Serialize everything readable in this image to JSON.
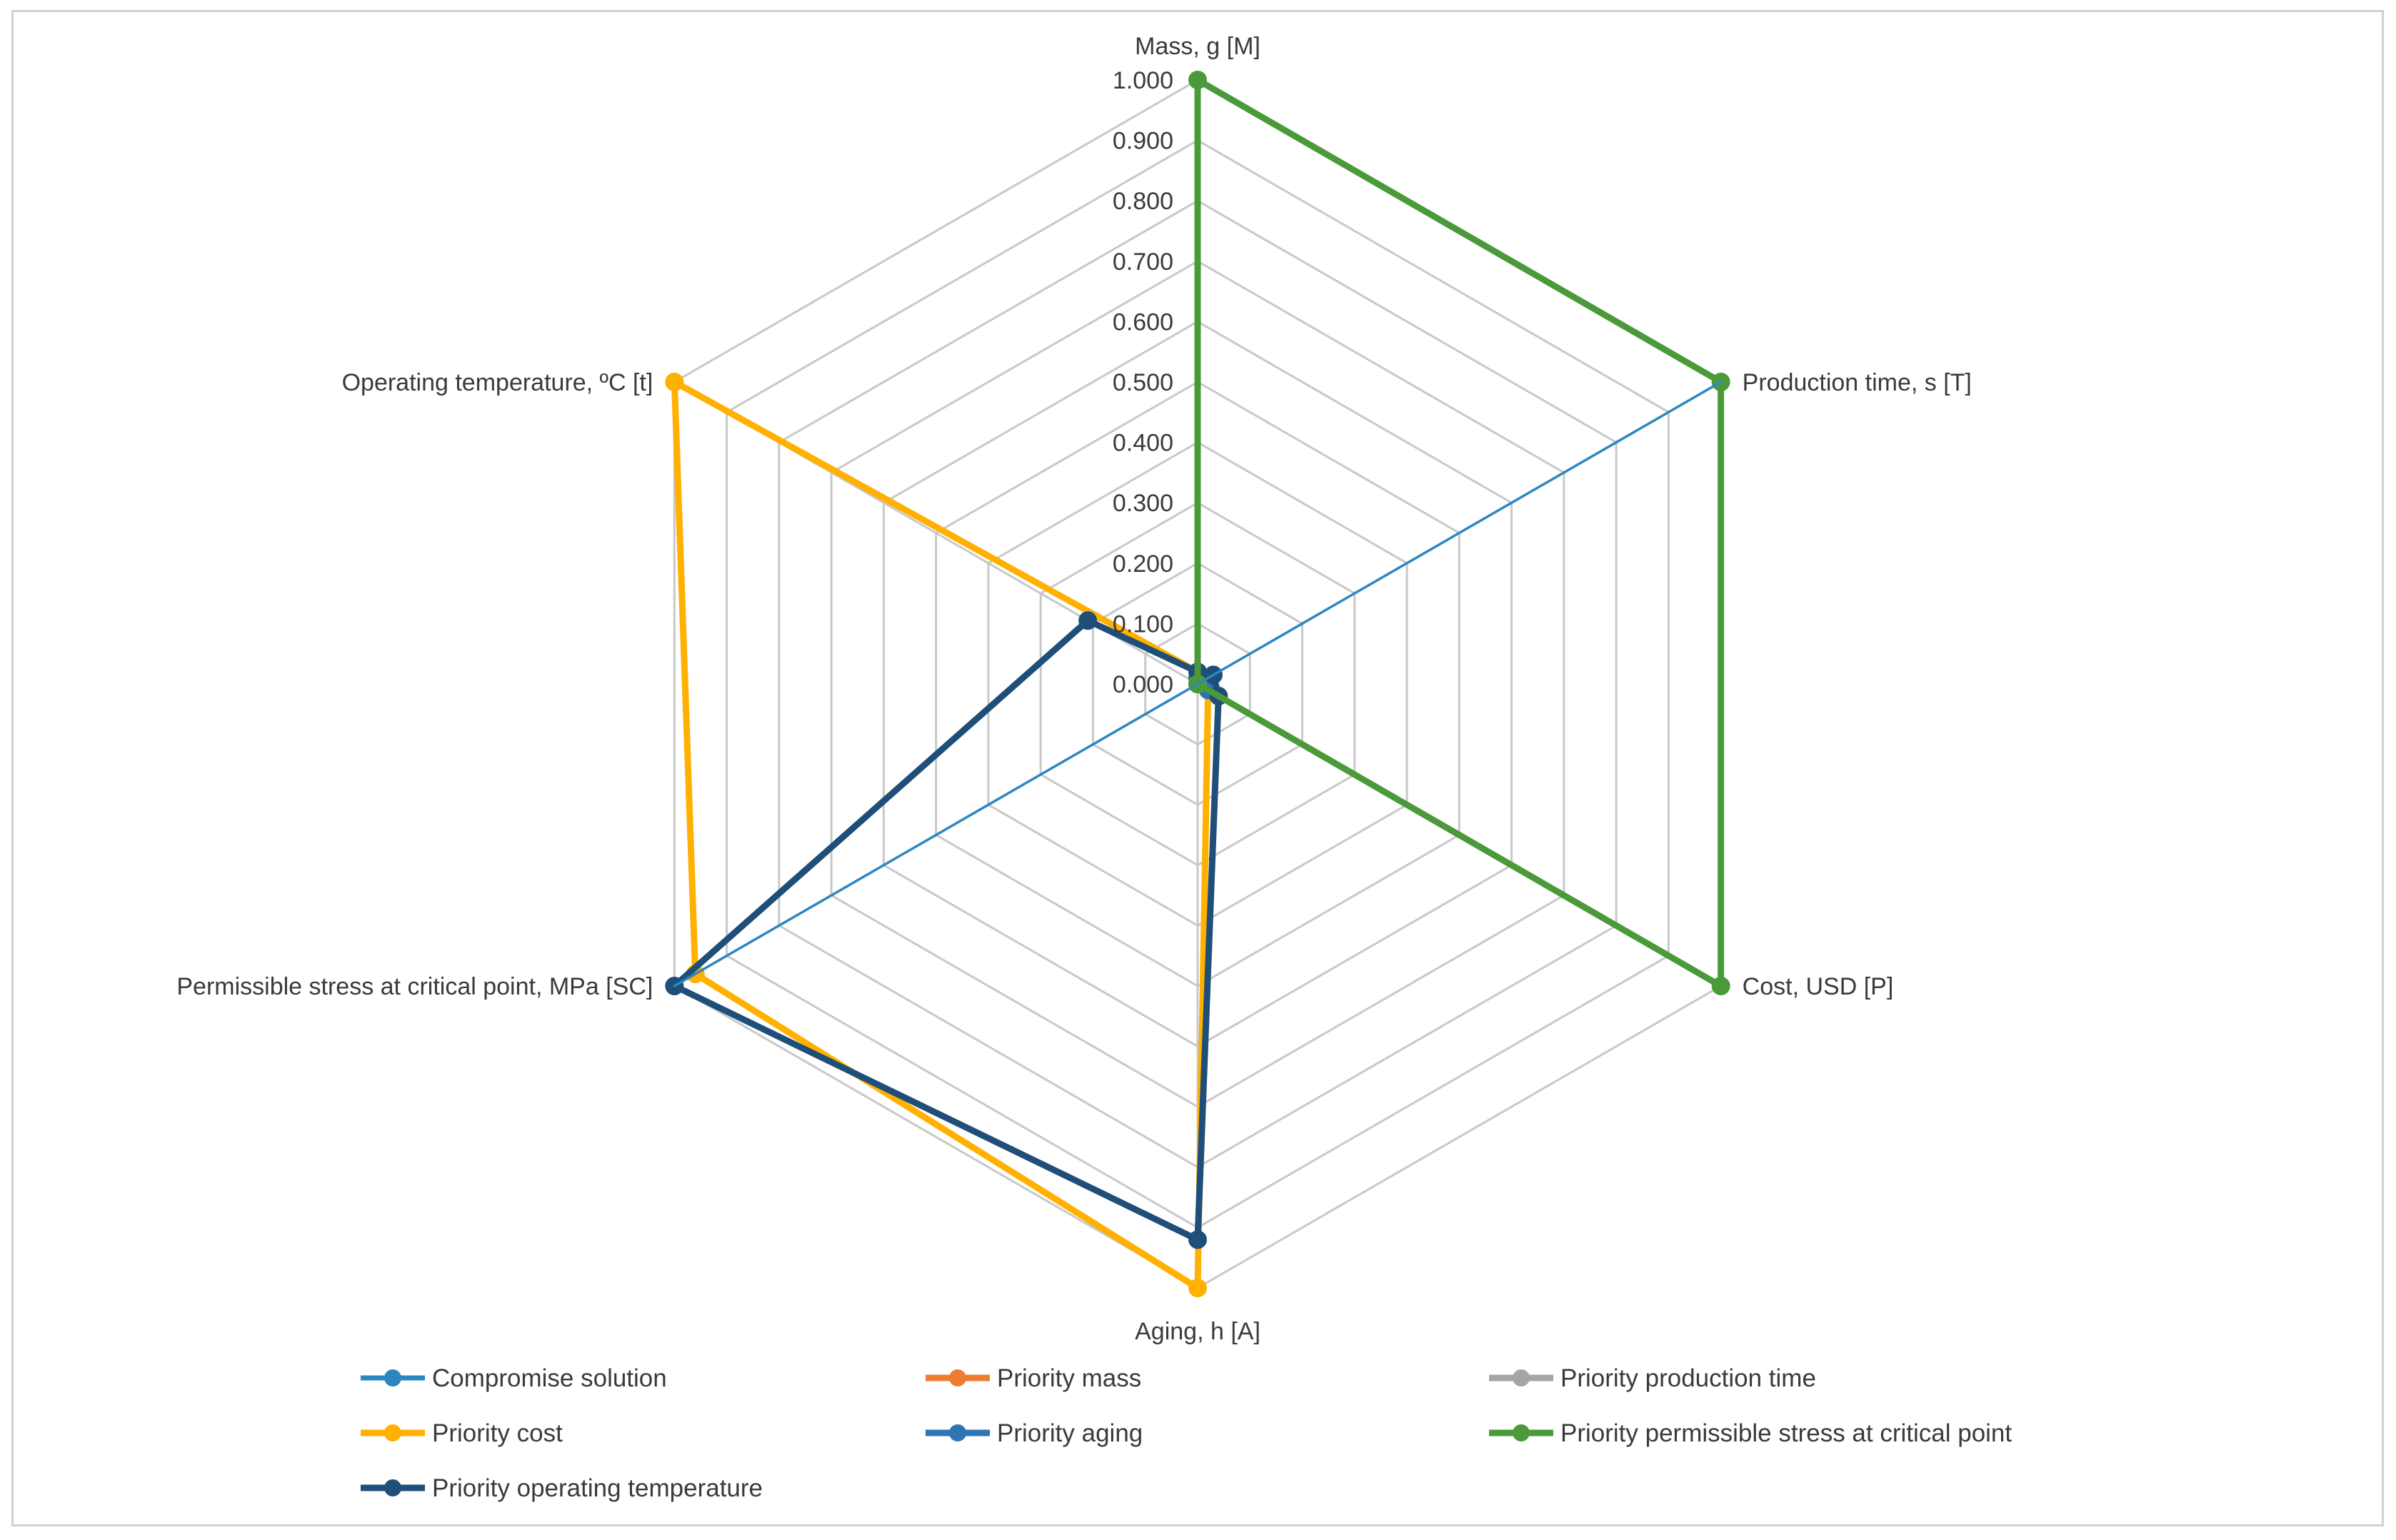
{
  "chart_data": {
    "type": "radar",
    "title": "",
    "axes": [
      "Mass, g [M]",
      "Production time, s [T]",
      "Cost, USD [P]",
      "Aging, h [A]",
      "Permissible stress at critical point, MPa [SC]",
      "Operating temperature, ºC [t]"
    ],
    "range": [
      0,
      1
    ],
    "ticks": [
      "0.000",
      "0.100",
      "0.200",
      "0.300",
      "0.400",
      "0.500",
      "0.600",
      "0.700",
      "0.800",
      "0.900",
      "1.000"
    ],
    "grid": true,
    "legend_position": "bottom",
    "series": [
      {
        "name": "Compromise solution",
        "color": "#2e86c1",
        "values": [
          0.0,
          1.0,
          0.0,
          0.0,
          1.0,
          0.0
        ]
      },
      {
        "name": "Priority mass",
        "color": "#ed7d31",
        "values": [
          0.0,
          0.0,
          0.0,
          0.0,
          0.0,
          0.0
        ]
      },
      {
        "name": "Priority production time",
        "color": "#a5a5a5",
        "values": [
          0.0,
          0.0,
          0.0,
          0.0,
          0.0,
          0.0
        ]
      },
      {
        "name": "Priority cost",
        "color": "#ffb000",
        "values": [
          0.02,
          0.0,
          0.02,
          1.0,
          0.96,
          1.0
        ]
      },
      {
        "name": "Priority aging",
        "color": "#2e75b6",
        "values": [
          0.01,
          0.01,
          0.02,
          0.0,
          0.0,
          0.0
        ]
      },
      {
        "name": "Priority permissible stress at critical point",
        "color": "#4b9a3a",
        "values": [
          1.0,
          1.0,
          1.0,
          0.0,
          0.0,
          0.0
        ]
      },
      {
        "name": "Priority operating temperature",
        "color": "#1f4e79",
        "values": [
          0.02,
          0.03,
          0.04,
          0.92,
          1.0,
          0.21
        ]
      }
    ]
  }
}
